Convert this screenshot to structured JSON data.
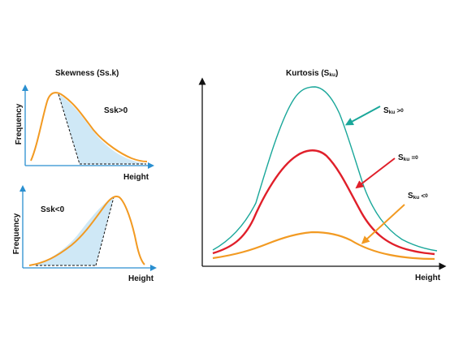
{
  "skewness": {
    "title": "Skewness (Ss.k)",
    "positive": {
      "ylabel": "Frequency",
      "xlabel": "Height",
      "annotation": "Ssk>0"
    },
    "negative": {
      "ylabel": "Frequency",
      "xlabel": "Height",
      "annotation": "Ssk<0"
    }
  },
  "kurtosis": {
    "title_main": "Kurtosis (S",
    "title_sub": "ku",
    "title_end": ")",
    "xlabel": "Height",
    "labels": [
      {
        "prefix": "S",
        "sub": "ku",
        "suffix": " >",
        "sup": "0"
      },
      {
        "prefix": "S",
        "sub": "ku",
        "suffix": " =",
        "sup": "0"
      },
      {
        "prefix": "S",
        "sub": "ku",
        "suffix": " <",
        "sup": "0"
      }
    ]
  },
  "colors": {
    "axis": "#2a8fd0",
    "axis_dark": "#111111",
    "orange": "#f29a22",
    "red": "#e01f2a",
    "teal": "#1aa79a",
    "fill": "#cfe8f6"
  }
}
